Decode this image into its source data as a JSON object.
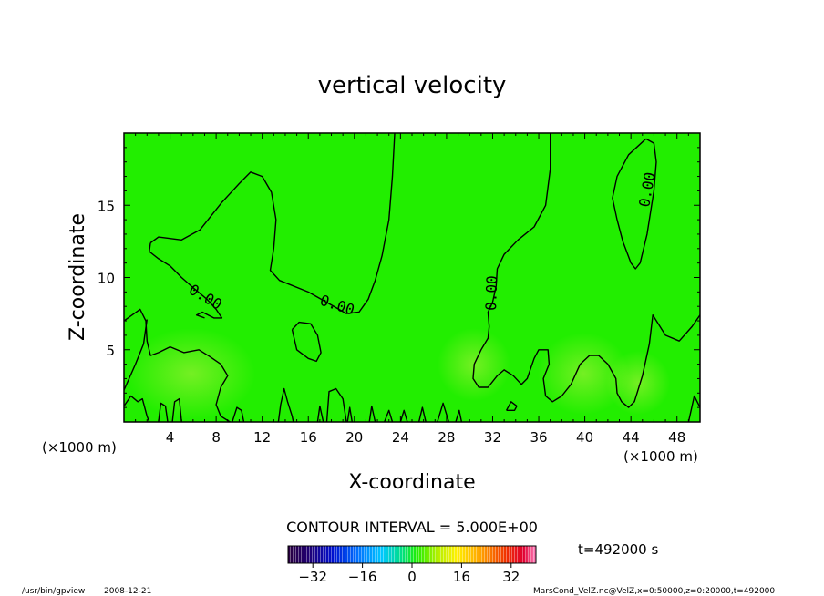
{
  "chart_data": {
    "type": "contour",
    "title": "vertical velocity",
    "xlabel": "X-coordinate",
    "ylabel": "Z-coordinate",
    "x_unit_left": "(×1000 m)",
    "x_unit_right": "(×1000 m)",
    "xlim": [
      0,
      50
    ],
    "ylim": [
      0,
      20
    ],
    "x_ticks": [
      4,
      8,
      12,
      16,
      20,
      24,
      28,
      32,
      36,
      40,
      44,
      48
    ],
    "y_ticks": [
      5,
      10,
      15
    ],
    "contour_labels": [
      "0.00",
      "0.00",
      "0.00",
      "0.00"
    ],
    "contour_interval_text": "CONTOUR INTERVAL = 5.000E+00",
    "colorbar_ticks": [
      -32,
      -16,
      0,
      16,
      32
    ],
    "colorbar_range": [
      -40,
      40
    ],
    "time_text": "t=492000 s",
    "fill_color": "#22ee00",
    "contour_lines": [
      [
        [
          0.0,
          7.0
        ],
        [
          1.4,
          7.8
        ],
        [
          1.9,
          7.0
        ],
        [
          2.0,
          5.6
        ],
        [
          2.3,
          4.6
        ],
        [
          3.0,
          4.8
        ],
        [
          4.0,
          5.2
        ],
        [
          5.2,
          4.8
        ],
        [
          6.5,
          5.0
        ],
        [
          7.5,
          4.5
        ],
        [
          8.4,
          4.0
        ],
        [
          9.0,
          3.2
        ],
        [
          8.4,
          2.4
        ],
        [
          8.0,
          1.2
        ],
        [
          8.4,
          0.4
        ],
        [
          9.2,
          0.0
        ]
      ],
      [
        [
          0.0,
          2.2
        ],
        [
          1.0,
          4.0
        ],
        [
          1.7,
          5.4
        ],
        [
          2.0,
          7.1
        ]
      ],
      [
        [
          2.3,
          12.4
        ],
        [
          3.0,
          12.8
        ],
        [
          5.0,
          12.6
        ],
        [
          6.6,
          13.3
        ],
        [
          8.5,
          15.2
        ],
        [
          10.0,
          16.5
        ],
        [
          11.0,
          17.3
        ],
        [
          12.0,
          17.0
        ],
        [
          12.8,
          15.9
        ],
        [
          13.2,
          14.0
        ],
        [
          13.0,
          12.0
        ],
        [
          12.7,
          10.5
        ],
        [
          13.5,
          9.8
        ],
        [
          16.0,
          9.0
        ],
        [
          18.0,
          8.1
        ],
        [
          19.3,
          7.5
        ],
        [
          20.4,
          7.6
        ],
        [
          21.2,
          8.5
        ],
        [
          21.8,
          9.8
        ],
        [
          22.4,
          11.5
        ],
        [
          23.0,
          14.0
        ],
        [
          23.3,
          17.0
        ],
        [
          23.5,
          20.0
        ]
      ],
      [
        [
          2.3,
          12.4
        ],
        [
          2.2,
          11.8
        ],
        [
          3.0,
          11.3
        ],
        [
          4.0,
          10.8
        ],
        [
          5.0,
          10.0
        ],
        [
          6.0,
          9.3
        ],
        [
          7.2,
          8.5
        ],
        [
          8.0,
          7.8
        ],
        [
          8.5,
          7.2
        ],
        [
          7.8,
          7.2
        ],
        [
          6.8,
          7.6
        ],
        [
          6.3,
          7.4
        ],
        [
          7.0,
          7.2
        ]
      ],
      [
        [
          14.6,
          6.4
        ],
        [
          15.2,
          6.9
        ],
        [
          16.2,
          6.8
        ],
        [
          16.8,
          6.0
        ],
        [
          17.1,
          4.8
        ],
        [
          16.7,
          4.2
        ],
        [
          16.0,
          4.4
        ],
        [
          15.0,
          5.0
        ],
        [
          14.6,
          6.4
        ]
      ],
      [
        [
          37.0,
          20.0
        ],
        [
          37.0,
          17.5
        ],
        [
          36.6,
          15.0
        ],
        [
          35.6,
          13.5
        ],
        [
          34.2,
          12.6
        ],
        [
          33.0,
          11.6
        ],
        [
          32.4,
          10.6
        ],
        [
          32.3,
          9.4
        ],
        [
          32.0,
          8.3
        ],
        [
          31.6,
          7.6
        ],
        [
          31.7,
          6.6
        ],
        [
          31.6,
          5.8
        ],
        [
          31.0,
          5.0
        ],
        [
          30.4,
          4.0
        ],
        [
          30.3,
          3.0
        ],
        [
          30.8,
          2.4
        ],
        [
          31.6,
          2.4
        ],
        [
          32.4,
          3.2
        ],
        [
          33.0,
          3.6
        ],
        [
          33.8,
          3.2
        ],
        [
          34.5,
          2.6
        ],
        [
          35.0,
          3.0
        ],
        [
          35.6,
          4.4
        ],
        [
          36.0,
          5.0
        ],
        [
          36.8,
          5.0
        ],
        [
          36.9,
          4.0
        ],
        [
          36.4,
          3.0
        ],
        [
          36.6,
          1.8
        ],
        [
          37.2,
          1.4
        ],
        [
          38.0,
          1.8
        ],
        [
          38.8,
          2.6
        ],
        [
          39.6,
          4.0
        ],
        [
          40.4,
          4.6
        ],
        [
          41.2,
          4.6
        ],
        [
          42.0,
          4.0
        ],
        [
          42.7,
          3.0
        ],
        [
          42.8,
          2.0
        ],
        [
          43.2,
          1.4
        ],
        [
          43.8,
          1.0
        ],
        [
          44.3,
          1.4
        ],
        [
          45.0,
          3.2
        ],
        [
          45.6,
          5.4
        ],
        [
          45.9,
          7.4
        ],
        [
          47.0,
          6.0
        ],
        [
          48.2,
          5.6
        ],
        [
          49.3,
          6.6
        ],
        [
          50.0,
          7.4
        ]
      ],
      [
        [
          45.3,
          19.6
        ],
        [
          46.0,
          19.3
        ],
        [
          46.2,
          18.0
        ],
        [
          46.0,
          16.0
        ],
        [
          45.4,
          13.0
        ],
        [
          44.8,
          11.0
        ],
        [
          44.4,
          10.6
        ],
        [
          44.0,
          11.0
        ],
        [
          43.3,
          12.5
        ],
        [
          42.8,
          14.0
        ],
        [
          42.4,
          15.5
        ],
        [
          42.8,
          17.0
        ],
        [
          43.8,
          18.5
        ],
        [
          45.3,
          19.6
        ]
      ],
      [
        [
          0.0,
          1.1
        ],
        [
          0.6,
          1.8
        ],
        [
          1.2,
          1.4
        ],
        [
          1.6,
          1.6
        ],
        [
          2.0,
          0.4
        ],
        [
          2.2,
          0.0
        ]
      ],
      [
        [
          3.0,
          0.0
        ],
        [
          3.2,
          1.3
        ],
        [
          3.6,
          1.1
        ],
        [
          3.8,
          0.0
        ]
      ],
      [
        [
          4.2,
          0.0
        ],
        [
          4.4,
          1.4
        ],
        [
          4.8,
          1.6
        ],
        [
          5.0,
          0.0
        ]
      ],
      [
        [
          9.4,
          0.0
        ],
        [
          9.8,
          1.0
        ],
        [
          10.2,
          0.8
        ],
        [
          10.4,
          0.0
        ]
      ],
      [
        [
          13.4,
          0.0
        ],
        [
          13.6,
          1.2
        ],
        [
          13.9,
          2.3
        ],
        [
          14.2,
          1.4
        ],
        [
          14.6,
          0.4
        ],
        [
          14.7,
          0.0
        ]
      ],
      [
        [
          16.8,
          0.0
        ],
        [
          17.0,
          1.1
        ],
        [
          17.3,
          0.0
        ]
      ],
      [
        [
          17.6,
          0.0
        ],
        [
          17.8,
          2.1
        ],
        [
          18.4,
          2.3
        ],
        [
          19.0,
          1.6
        ],
        [
          19.3,
          0.0
        ]
      ],
      [
        [
          19.4,
          0.0
        ],
        [
          19.6,
          1.0
        ],
        [
          19.8,
          0.0
        ]
      ],
      [
        [
          21.3,
          0.0
        ],
        [
          21.5,
          1.1
        ],
        [
          21.8,
          0.0
        ]
      ],
      [
        [
          22.6,
          0.0
        ],
        [
          23.0,
          0.8
        ],
        [
          23.3,
          0.0
        ]
      ],
      [
        [
          24.0,
          0.0
        ],
        [
          24.3,
          0.8
        ],
        [
          24.6,
          0.0
        ]
      ],
      [
        [
          25.6,
          0.0
        ],
        [
          25.9,
          1.0
        ],
        [
          26.2,
          0.0
        ]
      ],
      [
        [
          27.2,
          0.0
        ],
        [
          27.7,
          1.3
        ],
        [
          28.2,
          0.0
        ]
      ],
      [
        [
          28.8,
          0.0
        ],
        [
          29.1,
          0.8
        ],
        [
          29.3,
          0.0
        ]
      ],
      [
        [
          33.2,
          0.8
        ],
        [
          33.6,
          1.4
        ],
        [
          34.1,
          1.1
        ],
        [
          33.9,
          0.8
        ],
        [
          33.2,
          0.8
        ]
      ],
      [
        [
          49.0,
          0.0
        ],
        [
          49.5,
          1.8
        ],
        [
          50.0,
          1.0
        ]
      ]
    ]
  },
  "footer": {
    "program": "/usr/bin/gpview",
    "date": "2008-12-21",
    "source": "MarsCond_VelZ.nc@VelZ,x=0:50000,z=0:20000,t=492000"
  }
}
